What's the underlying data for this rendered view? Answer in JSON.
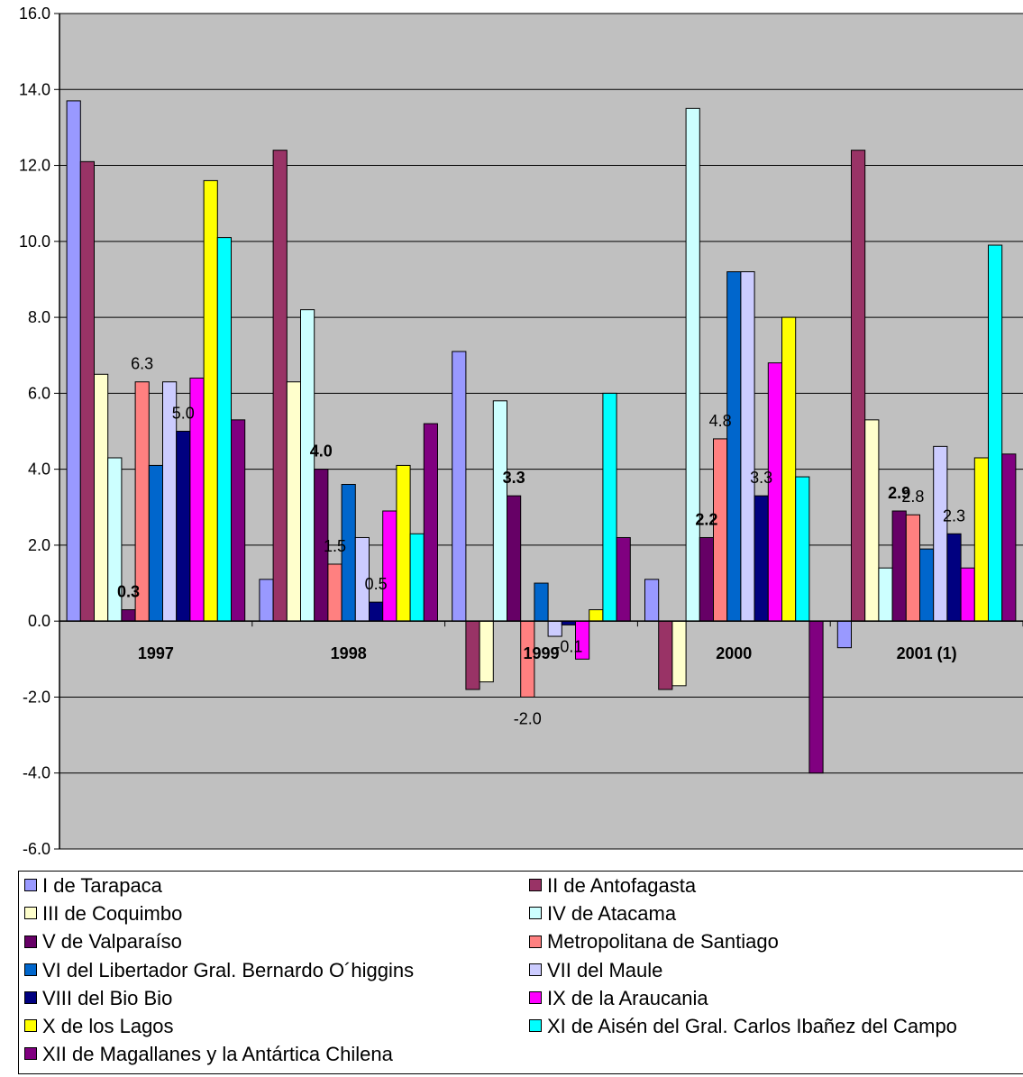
{
  "chart_data": {
    "type": "bar",
    "title": "",
    "xlabel": "",
    "ylabel": "",
    "ylim": [
      -6,
      16
    ],
    "yticks": [
      "16.0",
      "14.0",
      "12.0",
      "10.0",
      "8.0",
      "6.0",
      "4.0",
      "2.0",
      "0.0",
      "-2.0",
      "-4.0",
      "-6.0"
    ],
    "grid": "horizontal",
    "legend_position": "bottom",
    "categories": [
      "1997",
      "1998",
      "1999",
      "2000",
      "2001 (1)"
    ],
    "series": [
      {
        "name": "I de Tarapaca",
        "color": "#9999FF",
        "values": [
          13.7,
          1.1,
          7.1,
          1.1,
          -0.7
        ]
      },
      {
        "name": "II de Antofagasta",
        "color": "#993366",
        "values": [
          12.1,
          12.4,
          -1.8,
          -1.8,
          12.4
        ]
      },
      {
        "name": "III de Coquimbo",
        "color": "#FFFFCC",
        "values": [
          6.5,
          6.3,
          -1.6,
          -1.7,
          5.3
        ]
      },
      {
        "name": "IV de Atacama",
        "color": "#CCFFFF",
        "values": [
          4.3,
          8.2,
          5.8,
          13.5,
          1.4
        ]
      },
      {
        "name": "V de Valparaíso",
        "color": "#660066",
        "values": [
          0.3,
          4.0,
          3.3,
          2.2,
          2.9
        ]
      },
      {
        "name": "Metropolitana de Santiago",
        "color": "#FF8080",
        "values": [
          6.3,
          1.5,
          -2.0,
          4.8,
          2.8
        ]
      },
      {
        "name": "VI del Libertador Gral. Bernardo O´higgins",
        "color": "#0066CC",
        "values": [
          4.1,
          3.6,
          1.0,
          9.2,
          1.9
        ]
      },
      {
        "name": "VII del Maule",
        "color": "#CCCCFF",
        "values": [
          6.3,
          2.2,
          -0.4,
          9.2,
          4.6
        ]
      },
      {
        "name": "VIII del Bio Bio",
        "color": "#000080",
        "values": [
          5.0,
          0.5,
          -0.1,
          3.3,
          2.3
        ]
      },
      {
        "name": "IX de la Araucania",
        "color": "#FF00FF",
        "values": [
          6.4,
          2.9,
          -1.0,
          6.8,
          1.4
        ]
      },
      {
        "name": "X de los Lagos",
        "color": "#FFFF00",
        "values": [
          11.6,
          4.1,
          0.3,
          8.0,
          4.3
        ]
      },
      {
        "name": "XI de Aisén del Gral. Carlos Ibañez del Campo",
        "color": "#00FFFF",
        "values": [
          10.1,
          2.3,
          6.0,
          3.8,
          9.9
        ]
      },
      {
        "name": "XII de Magallanes y la Antártica Chilena",
        "color": "#800080",
        "values": [
          5.3,
          5.2,
          2.2,
          -4.0,
          4.4
        ]
      }
    ],
    "data_labels": [
      {
        "text": "6.3",
        "category": "1997",
        "series": 5,
        "bold": false
      },
      {
        "text": "0.3",
        "category": "1997",
        "series": 4,
        "bold": true
      },
      {
        "text": "5.0",
        "category": "1997",
        "series": 8,
        "bold": false
      },
      {
        "text": "4.0",
        "category": "1998",
        "series": 4,
        "bold": true
      },
      {
        "text": "1.5",
        "category": "1998",
        "series": 5,
        "bold": false
      },
      {
        "text": "0.5",
        "category": "1998",
        "series": 8,
        "bold": false
      },
      {
        "text": "3.3",
        "category": "1999",
        "series": 4,
        "bold": true
      },
      {
        "text": "-0.1",
        "category": "1999",
        "series": 8,
        "bold": false
      },
      {
        "text": "-2.0",
        "category": "1999",
        "series": 5,
        "bold": false
      },
      {
        "text": "4.8",
        "category": "2000",
        "series": 5,
        "bold": false
      },
      {
        "text": "3.3",
        "category": "2000",
        "series": 8,
        "bold": false
      },
      {
        "text": "2.2",
        "category": "2000",
        "series": 4,
        "bold": true
      },
      {
        "text": "2.9",
        "category": "2001 (1)",
        "series": 4,
        "bold": true
      },
      {
        "text": "2.8",
        "category": "2001 (1)",
        "series": 5,
        "bold": false
      },
      {
        "text": "2.3",
        "category": "2001 (1)",
        "series": 8,
        "bold": false
      }
    ],
    "colors": {
      "plot_background": "#C0C0C0",
      "gridline": "#000000"
    }
  }
}
